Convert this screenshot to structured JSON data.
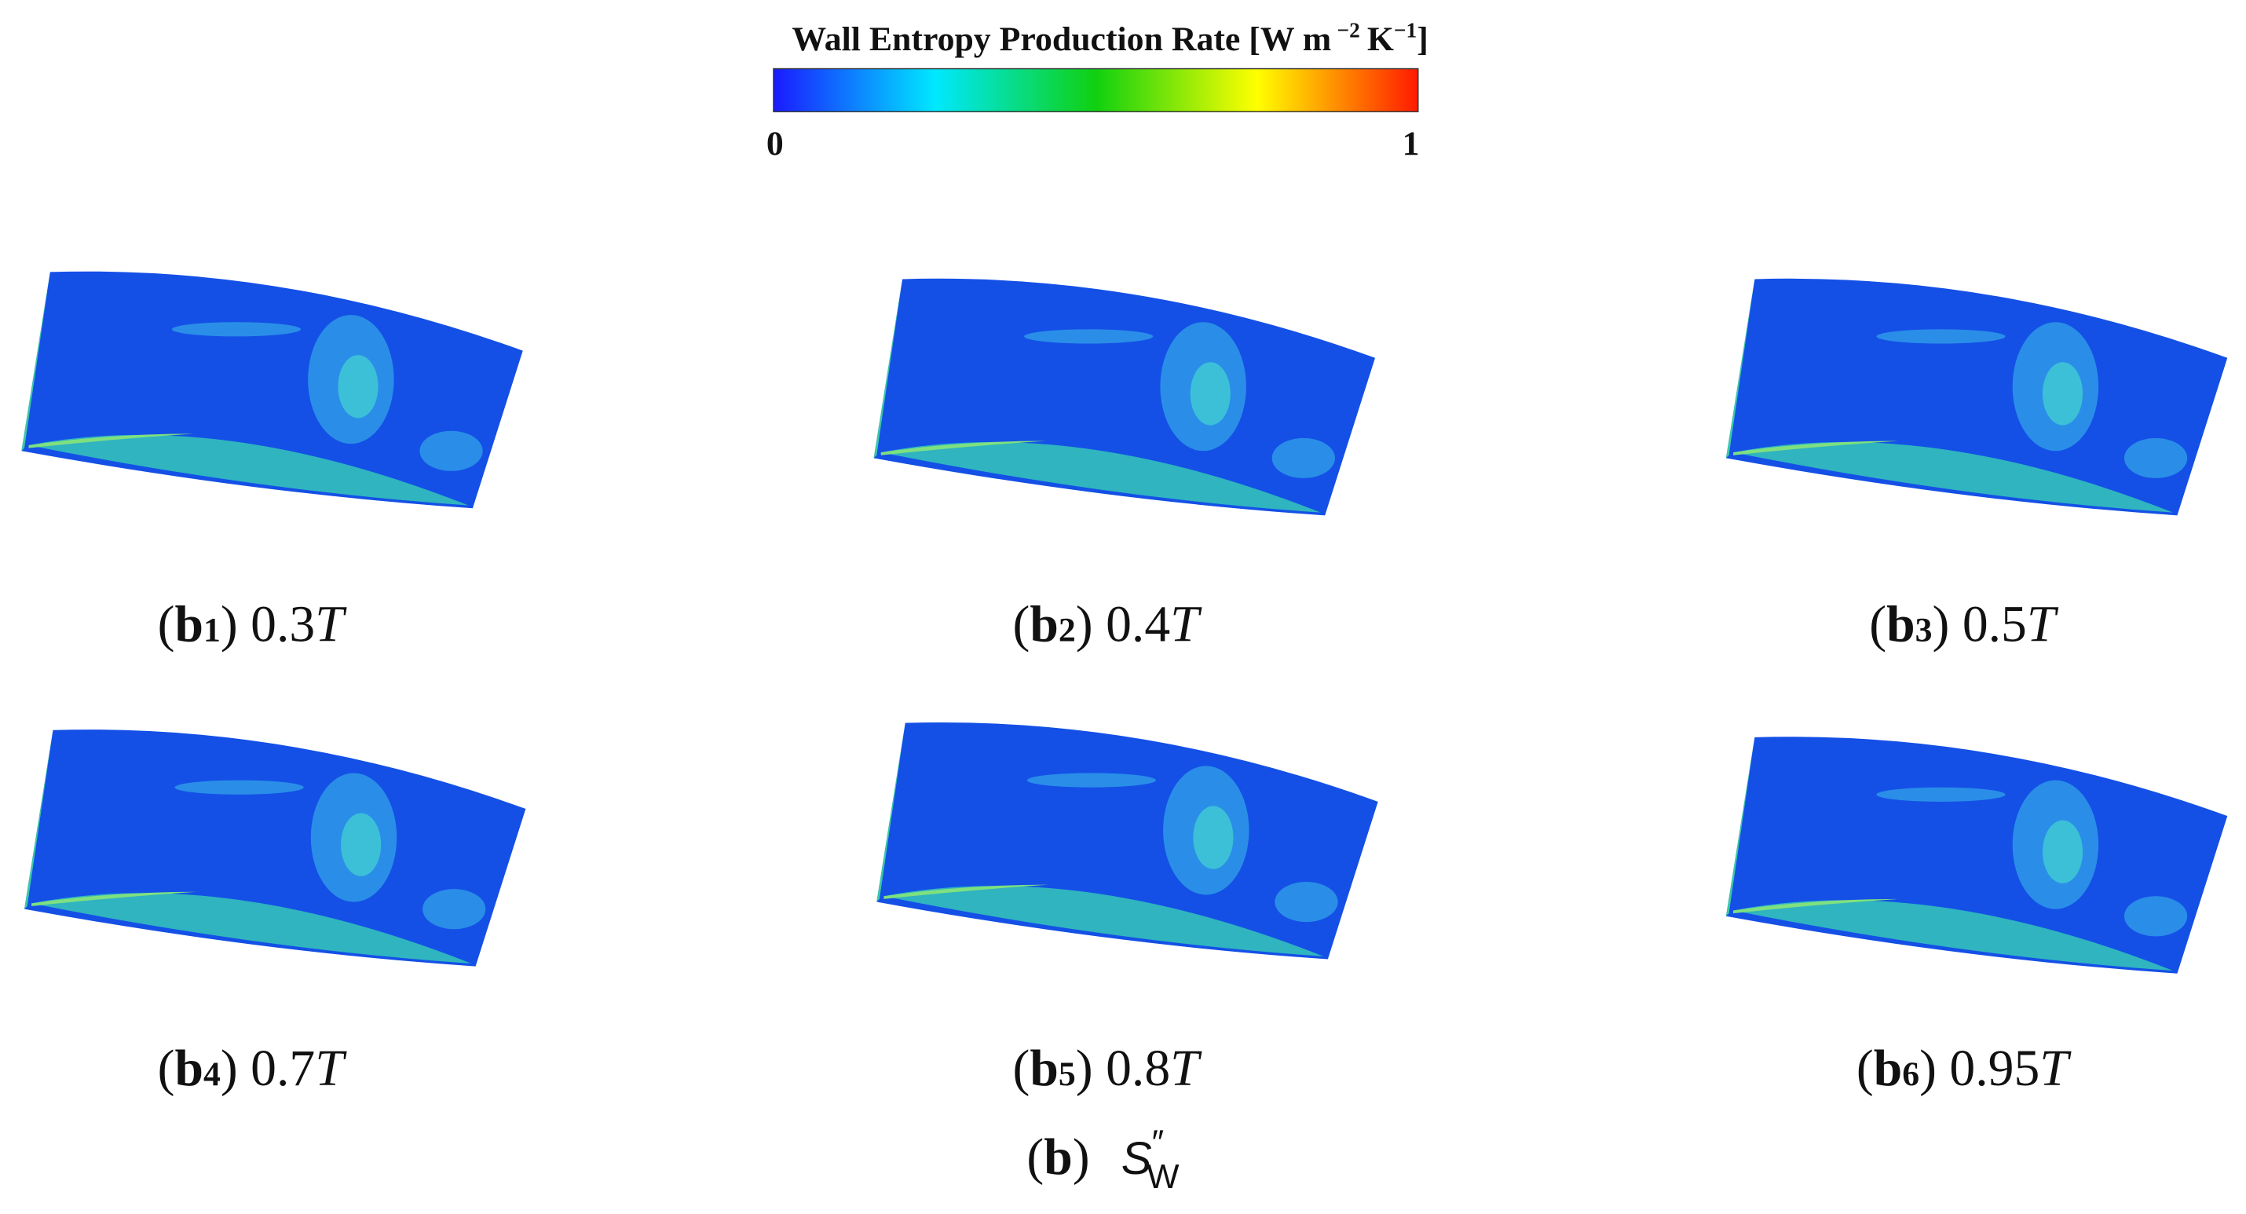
{
  "colorbar": {
    "title": {
      "main": "Wall Entropy Production Rate [W m",
      "exp1": "−2",
      "unit2": "K",
      "exp2": "−1",
      "close": "]"
    },
    "ticks": [
      0,
      1
    ]
  },
  "brackets": [
    "(",
    ")"
  ],
  "panels": [
    {
      "tag": "b",
      "sub": "1",
      "time": "0.3",
      "unit": "T"
    },
    {
      "tag": "b",
      "sub": "2",
      "time": "0.4",
      "unit": "T"
    },
    {
      "tag": "b",
      "sub": "3",
      "time": "0.5",
      "unit": "T"
    },
    {
      "tag": "b",
      "sub": "4",
      "time": "0.7",
      "unit": "T"
    },
    {
      "tag": "b",
      "sub": "5",
      "time": "0.8",
      "unit": "T"
    },
    {
      "tag": "b",
      "sub": "6",
      "time": "0.95",
      "unit": "T"
    }
  ],
  "caption": {
    "tag": "b",
    "symbol": "S",
    "prime": "″",
    "sub": "W"
  }
}
